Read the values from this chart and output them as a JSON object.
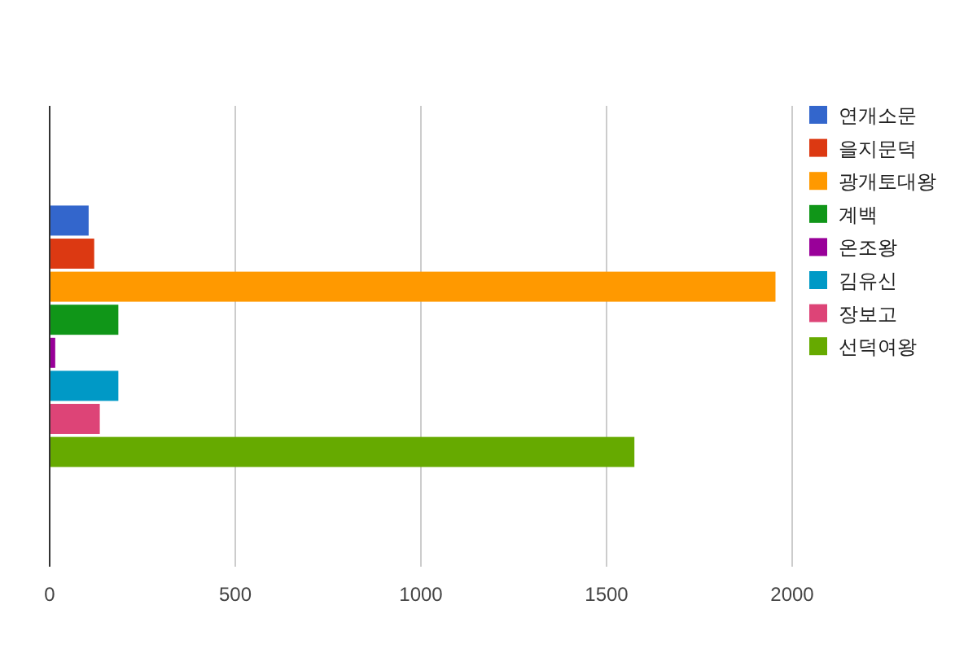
{
  "chart_data": {
    "type": "bar",
    "orientation": "horizontal",
    "categories": [
      null
    ],
    "series": [
      {
        "name": "연개소문",
        "color": "#3366cc",
        "values": [
          105
        ]
      },
      {
        "name": "을지문덕",
        "color": "#dc3912",
        "values": [
          120
        ]
      },
      {
        "name": "광개토대왕",
        "color": "#ff9900",
        "values": [
          1955
        ]
      },
      {
        "name": "계백",
        "color": "#109618",
        "values": [
          185
        ]
      },
      {
        "name": "온조왕",
        "color": "#990099",
        "values": [
          15
        ]
      },
      {
        "name": "김유신",
        "color": "#0099c6",
        "values": [
          185
        ]
      },
      {
        "name": "장보고",
        "color": "#dd4477",
        "values": [
          135
        ]
      },
      {
        "name": "선덕여왕",
        "color": "#66aa00",
        "values": [
          1575
        ]
      }
    ],
    "xlim": [
      0,
      2000
    ],
    "xticks": [
      0,
      500,
      1000,
      1500,
      2000
    ],
    "grid": "x",
    "legend": "top right"
  }
}
